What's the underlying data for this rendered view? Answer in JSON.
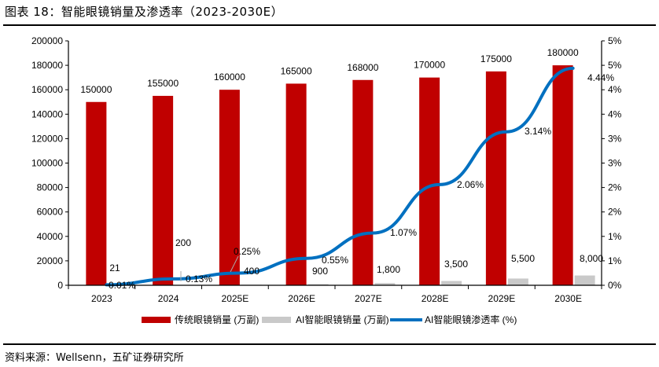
{
  "header": {
    "title": "图表 18：智能眼镜销量及渗透率（2023-2030E）"
  },
  "footer": {
    "source": "资料来源：Wellsenn，五矿证券研究所"
  },
  "colors": {
    "traditional": "#C00000",
    "ai_sales": "#C9C9C9",
    "penetration": "#0070C0"
  },
  "chart_data": {
    "type": "bar",
    "title": "智能眼镜销量及渗透率（2023-2030E）",
    "categories": [
      "2023",
      "2024",
      "2025E",
      "2026E",
      "2027E",
      "2028E",
      "2029E",
      "2030E"
    ],
    "series": [
      {
        "name": "传统眼镜销量 (万副)",
        "type": "bar",
        "axis": "left",
        "values": [
          150000,
          155000,
          160000,
          165000,
          168000,
          170000,
          175000,
          180000
        ],
        "labels": [
          "150000",
          "155000",
          "160000",
          "165000",
          "168000",
          "170000",
          "175000",
          "180000"
        ]
      },
      {
        "name": "AI智能眼镜销量 (万副)",
        "type": "bar",
        "axis": "left",
        "values": [
          21,
          200,
          400,
          900,
          1800,
          3500,
          5500,
          8000
        ],
        "labels": [
          "21",
          "200",
          "400",
          "900",
          "1,800",
          "3,500",
          "5,500",
          "8,000"
        ]
      },
      {
        "name": "AI智能眼镜渗透率 (%)",
        "type": "line",
        "axis": "right",
        "values": [
          0.01,
          0.13,
          0.25,
          0.55,
          1.07,
          2.06,
          3.14,
          4.44
        ],
        "labels": [
          "0.01%",
          "0.13%",
          "0.25%",
          "0.55%",
          "1.07%",
          "2.06%",
          "3.14%",
          "4.44%"
        ]
      }
    ],
    "xlabel": "",
    "ylabel": "",
    "ylim": [
      0,
      200000
    ],
    "y_ticks": [
      "0",
      "20000",
      "40000",
      "60000",
      "80000",
      "100000",
      "120000",
      "140000",
      "160000",
      "180000",
      "200000"
    ],
    "y2lim": [
      0,
      5
    ],
    "y2_ticks": [
      "0%",
      "1%",
      "1%",
      "2%",
      "2%",
      "3%",
      "3%",
      "4%",
      "4%",
      "5%",
      "5%"
    ],
    "grid": false,
    "legend_position": "bottom"
  },
  "legend": {
    "items": [
      {
        "label": "传统眼镜销量 (万副)"
      },
      {
        "label": "AI智能眼镜销量 (万副)"
      },
      {
        "label": "AI智能眼镜渗透率 (%)"
      }
    ]
  }
}
